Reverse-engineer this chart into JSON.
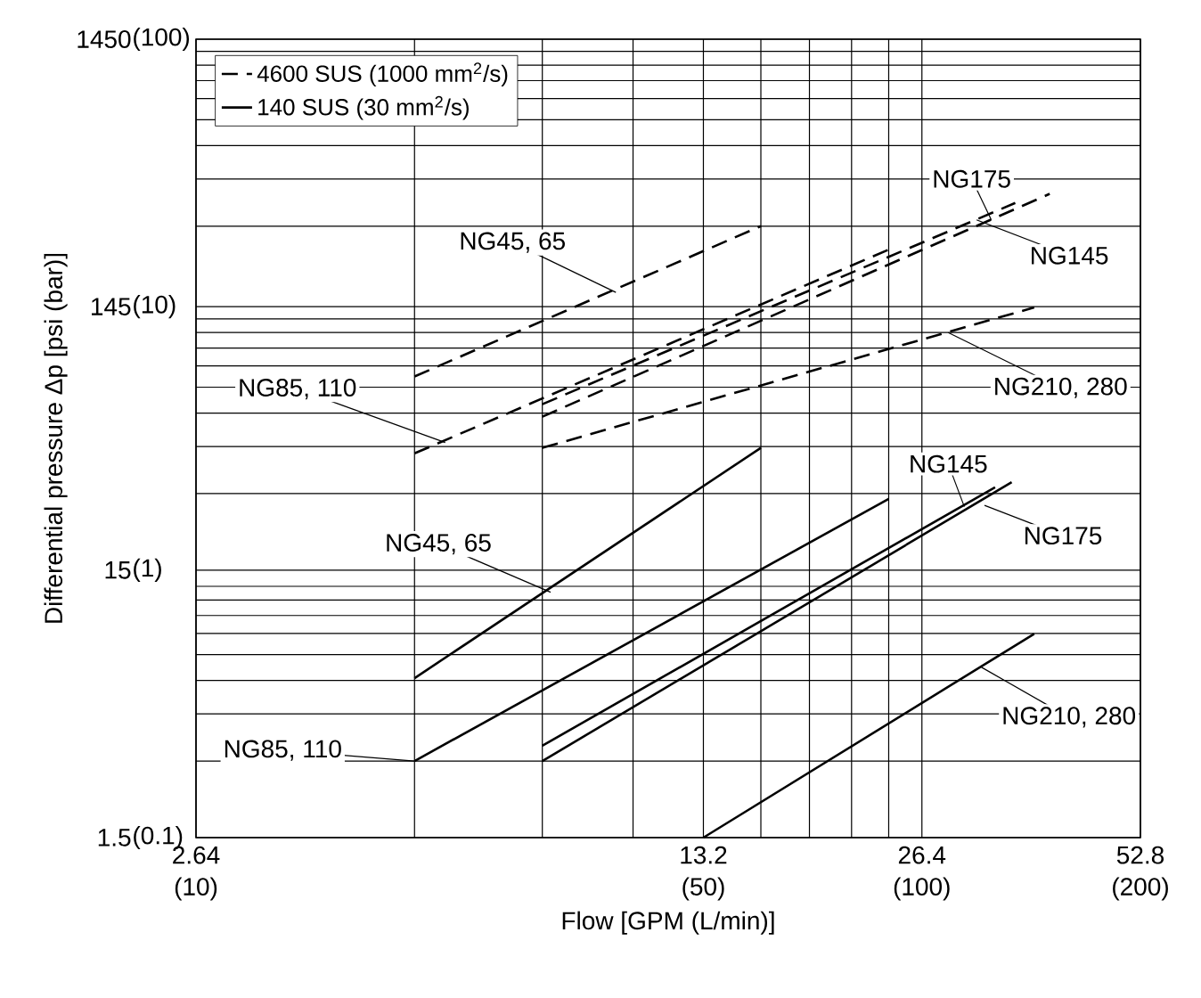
{
  "chart_data": {
    "type": "line",
    "xlabel": "Flow [GPM (L/min)]",
    "ylabel": "Differential pressure Δp [psi (bar)]",
    "log": "xy",
    "grid": true,
    "legend": "top left",
    "xlim": [
      2.64,
      52.8
    ],
    "ylim": [
      1.5,
      1450
    ],
    "xticks": [
      {
        "value": 2.64,
        "label": "2.64"
      },
      {
        "value": 5.28,
        "label": null
      },
      {
        "value": 7.92,
        "label": null
      },
      {
        "value": 10.56,
        "label": null
      },
      {
        "value": 13.2,
        "label": "13.2"
      },
      {
        "value": 15.84,
        "label": null
      },
      {
        "value": 18.48,
        "label": null
      },
      {
        "value": 21.12,
        "label": null
      },
      {
        "value": 23.76,
        "label": null
      },
      {
        "value": 26.4,
        "label": "26.4"
      },
      {
        "value": 52.8,
        "label": "52.8"
      }
    ],
    "yticks": [
      {
        "value": 1.5,
        "label": "1.5"
      },
      {
        "value": 2.9,
        "label": null
      },
      {
        "value": 4.35,
        "label": null
      },
      {
        "value": 5.8,
        "label": null
      },
      {
        "value": 7.25,
        "label": null
      },
      {
        "value": 8.7,
        "label": null
      },
      {
        "value": 10.15,
        "label": null
      },
      {
        "value": 11.6,
        "label": null
      },
      {
        "value": 13.05,
        "label": null
      },
      {
        "value": 15,
        "label": "15"
      },
      {
        "value": 29,
        "label": null
      },
      {
        "value": 43.5,
        "label": null
      },
      {
        "value": 58,
        "label": null
      },
      {
        "value": 72.5,
        "label": null
      },
      {
        "value": 87,
        "label": null
      },
      {
        "value": 101.5,
        "label": null
      },
      {
        "value": 116,
        "label": null
      },
      {
        "value": 130.5,
        "label": null
      },
      {
        "value": 145,
        "label": "145"
      },
      {
        "value": 290,
        "label": null
      },
      {
        "value": 435,
        "label": null
      },
      {
        "value": 580,
        "label": null
      },
      {
        "value": 725,
        "label": null
      },
      {
        "value": 870,
        "label": null
      },
      {
        "value": 1015,
        "label": null
      },
      {
        "value": 1160,
        "label": null
      },
      {
        "value": 1305,
        "label": null
      },
      {
        "value": 1450,
        "label": "1450"
      }
    ],
    "series": [
      {
        "name": "4600 SUS (1000 mm$^{2}$/s)",
        "color": "#000000",
        "line_style": "dashed",
        "x": [
          5.28,
          15.84
        ],
        "values": [
          79.5,
          290
        ]
      },
      {
        "color": "#000000",
        "line_style": "dashed",
        "x": [
          5.28,
          23.76
        ],
        "values": [
          41,
          237
        ]
      },
      {
        "color": "#000000",
        "line_style": "dashed",
        "x": [
          7.92,
          35.5
        ],
        "values": [
          62.6,
          354
        ]
      },
      {
        "color": "#000000",
        "line_style": "dashed",
        "x": [
          7.92,
          39.6
        ],
        "values": [
          56.2,
          383
        ]
      },
      {
        "color": "#000000",
        "line_style": "dashed",
        "x": [
          7.92,
          37.7
        ],
        "values": [
          43,
          144
        ]
      },
      {
        "name": "140 SUS (30 mm$^{2}$/s)",
        "color": "#000000",
        "line_style": "solid",
        "x": [
          5.28,
          15.84
        ],
        "values": [
          5.92,
          43
        ]
      },
      {
        "color": "#000000",
        "line_style": "solid",
        "x": [
          5.28,
          23.76
        ],
        "values": [
          2.9,
          27.7
        ]
      },
      {
        "color": "#000000",
        "line_style": "solid",
        "x": [
          7.92,
          33.3
        ],
        "values": [
          3.31,
          30.6
        ]
      },
      {
        "color": "#000000",
        "line_style": "solid",
        "x": [
          7.92,
          35.1
        ],
        "values": [
          2.9,
          32
        ]
      },
      {
        "color": "#000000",
        "line_style": "solid",
        "x": [
          13.2,
          37.7
        ],
        "values": [
          1.5,
          8.67
        ]
      }
    ],
    "annotations": [
      {
        "text": "NG45, 65",
        "x": 10.0,
        "y": 164
      },
      {
        "text": "NG85, 110",
        "x": 5.82,
        "y": 45
      },
      {
        "text": "NG175",
        "x": 32.9,
        "y": 306
      },
      {
        "text": "NG145",
        "x": 31.4,
        "y": 306
      },
      {
        "text": "NG210, 280",
        "x": 28.7,
        "y": 116
      },
      {
        "text": "NG145",
        "x": 30.2,
        "y": 25.9
      },
      {
        "text": "NG175",
        "x": 32.2,
        "y": 26.2
      },
      {
        "text": "NG45, 65",
        "x": 8.13,
        "y": 12.4
      },
      {
        "text": "NG85, 110",
        "x": 5.28,
        "y": 2.9
      },
      {
        "text": "NG210, 280",
        "x": 31.9,
        "y": 6.5
      },
      "(10)",
      "(50)",
      "(100)",
      "(200)",
      "(0.1)",
      "(1)",
      "(10)",
      "(100)"
    ]
  }
}
